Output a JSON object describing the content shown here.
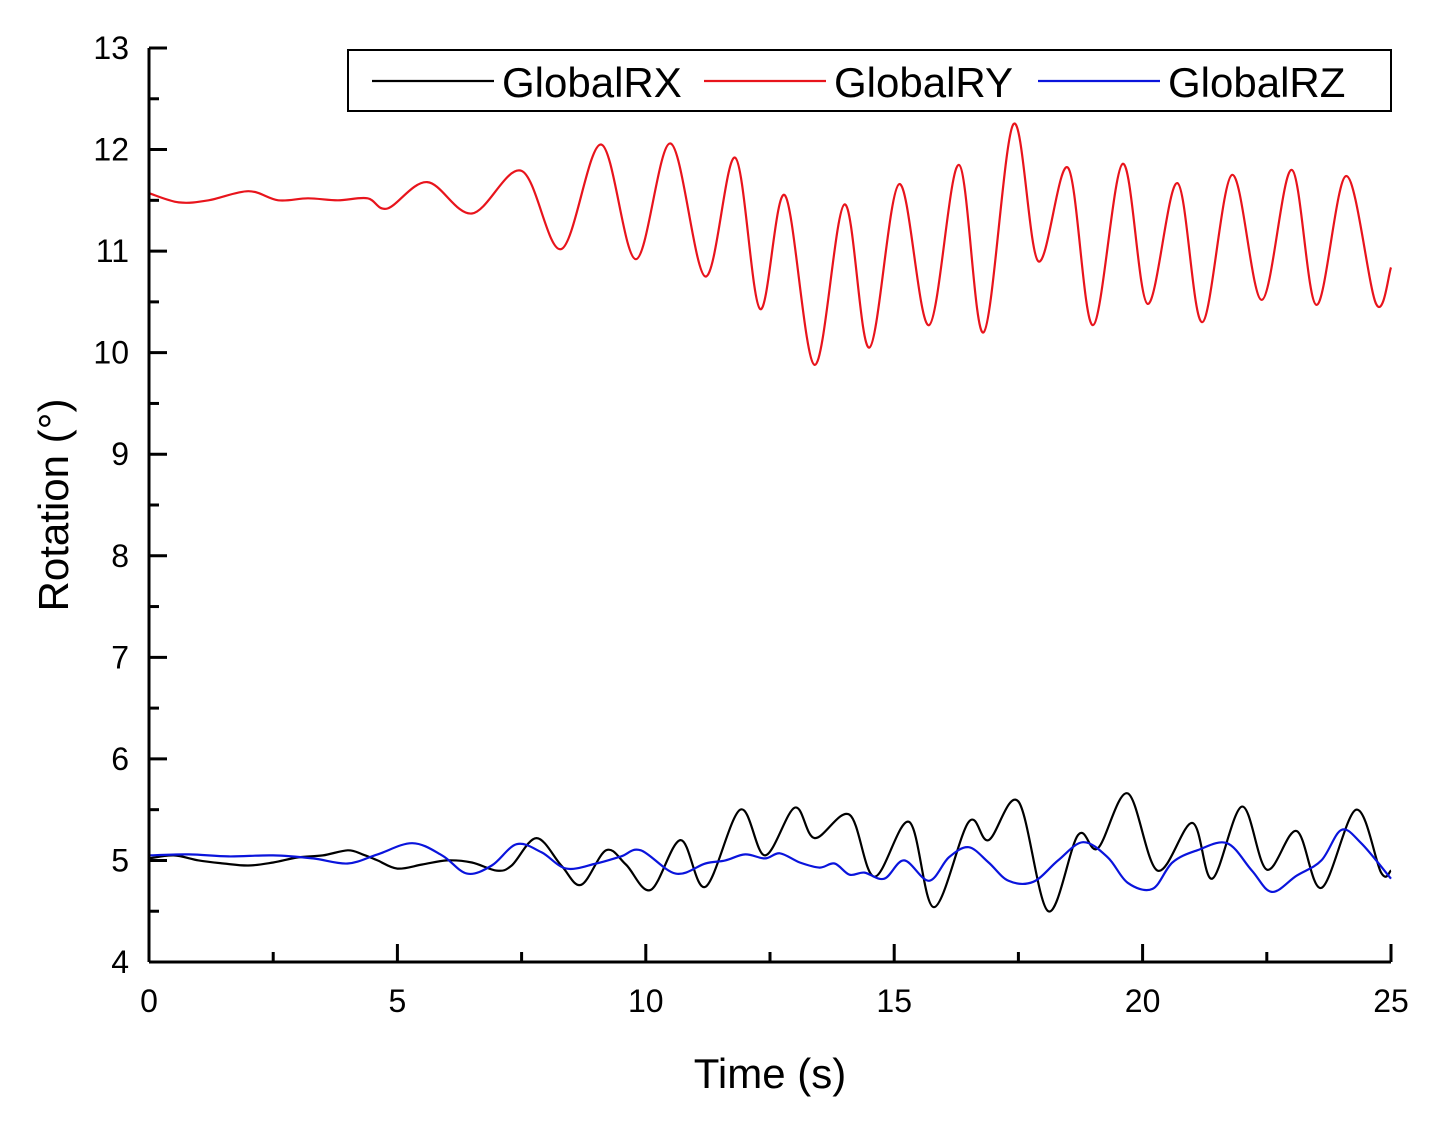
{
  "chart_data": {
    "type": "line",
    "xlabel": "Time (s)",
    "ylabel": "Rotation (°)",
    "xlim": [
      0,
      25
    ],
    "ylim": [
      4,
      13
    ],
    "xticks": [
      0,
      5,
      10,
      15,
      20,
      25
    ],
    "yticks": [
      4,
      5,
      6,
      7,
      8,
      9,
      10,
      11,
      12,
      13
    ],
    "grid": false,
    "legend_position": "top-right",
    "series": [
      {
        "name": "GlobalRX",
        "color": "#000000",
        "x": [
          0,
          0.5,
          1,
          1.5,
          2,
          2.5,
          3,
          3.5,
          4,
          4.3,
          4.6,
          5,
          5.5,
          6,
          6.5,
          7,
          7.3,
          7.8,
          8.3,
          8.7,
          9.2,
          9.6,
          10.1,
          10.7,
          11.2,
          11.9,
          12.4,
          13,
          13.4,
          14.1,
          14.6,
          15.3,
          15.8,
          16.5,
          16.9,
          17.5,
          18.1,
          18.7,
          19.1,
          19.7,
          20.3,
          21,
          21.4,
          22,
          22.5,
          23.1,
          23.6,
          24.3,
          24.8,
          25
        ],
        "values": [
          5.02,
          5.05,
          5.0,
          4.97,
          4.95,
          4.98,
          5.03,
          5.05,
          5.1,
          5.06,
          5.0,
          4.92,
          4.96,
          5.0,
          4.98,
          4.9,
          4.95,
          5.22,
          4.95,
          4.76,
          5.1,
          4.96,
          4.71,
          5.2,
          4.74,
          5.5,
          5.05,
          5.52,
          5.22,
          5.45,
          4.84,
          5.38,
          4.54,
          5.38,
          5.2,
          5.58,
          4.5,
          5.25,
          5.12,
          5.66,
          4.9,
          5.37,
          4.82,
          5.53,
          4.91,
          5.29,
          4.73,
          5.5,
          4.88,
          4.9
        ]
      },
      {
        "name": "GlobalRY",
        "color": "#e8141c",
        "x": [
          0,
          0.6,
          1.2,
          2,
          2.6,
          3.2,
          3.8,
          4.4,
          4.8,
          5.6,
          6.5,
          7.5,
          8.3,
          9.1,
          9.8,
          10.5,
          11.2,
          11.8,
          12.3,
          12.8,
          13.4,
          14,
          14.5,
          15.1,
          15.7,
          16.3,
          16.8,
          17.4,
          17.9,
          18.5,
          19,
          19.6,
          20.1,
          20.7,
          21.2,
          21.8,
          22.4,
          23,
          23.5,
          24.1,
          24.7,
          25
        ],
        "values": [
          11.57,
          11.48,
          11.5,
          11.59,
          11.5,
          11.52,
          11.5,
          11.52,
          11.42,
          11.68,
          11.37,
          11.79,
          11.02,
          12.05,
          10.92,
          12.06,
          10.75,
          11.92,
          10.43,
          11.55,
          9.88,
          11.46,
          10.05,
          11.66,
          10.27,
          11.85,
          10.2,
          12.25,
          10.9,
          11.82,
          10.27,
          11.86,
          10.48,
          11.67,
          10.3,
          11.75,
          10.52,
          11.8,
          10.47,
          11.74,
          10.48,
          10.84
        ]
      },
      {
        "name": "GlobalRZ",
        "color": "#0a14dc",
        "x": [
          0,
          0.8,
          1.6,
          2.5,
          3.3,
          4,
          4.6,
          5.3,
          5.9,
          6.4,
          6.9,
          7.4,
          7.9,
          8.4,
          9,
          9.5,
          9.9,
          10.6,
          11.2,
          11.6,
          12,
          12.4,
          12.7,
          13.1,
          13.5,
          13.8,
          14.1,
          14.4,
          14.8,
          15.2,
          15.7,
          16.1,
          16.5,
          16.9,
          17.3,
          17.8,
          18.3,
          18.8,
          19.3,
          19.7,
          20.2,
          20.6,
          21.1,
          21.7,
          22.2,
          22.6,
          23.1,
          23.6,
          24,
          24.4,
          25
        ],
        "values": [
          5.05,
          5.06,
          5.04,
          5.05,
          5.02,
          4.97,
          5.06,
          5.17,
          5.05,
          4.87,
          4.95,
          5.16,
          5.08,
          4.92,
          4.97,
          5.04,
          5.1,
          4.87,
          4.97,
          5.0,
          5.06,
          5.02,
          5.07,
          4.98,
          4.93,
          4.97,
          4.86,
          4.88,
          4.82,
          5.0,
          4.8,
          5.03,
          5.13,
          4.98,
          4.8,
          4.79,
          5.0,
          5.18,
          5.03,
          4.78,
          4.72,
          4.98,
          5.1,
          5.17,
          4.9,
          4.69,
          4.85,
          5.0,
          5.3,
          5.17,
          4.82
        ]
      }
    ]
  }
}
